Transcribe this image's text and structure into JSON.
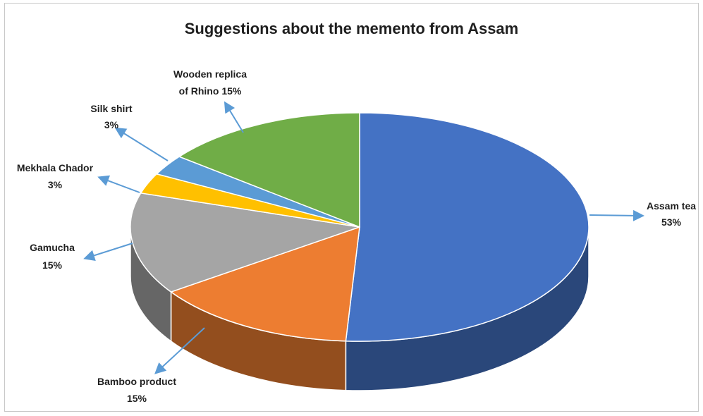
{
  "chart_data": {
    "type": "pie",
    "title": "Suggestions about the memento from Assam",
    "slices": [
      {
        "label": "Assam tea",
        "percent_label": "53%",
        "value": 53,
        "color": "#4472C4"
      },
      {
        "label": "Bamboo product",
        "percent_label": "15%",
        "value": 15,
        "color": "#ED7D31"
      },
      {
        "label": "Gamucha",
        "percent_label": "15%",
        "value": 15,
        "color": "#A5A5A5"
      },
      {
        "label": "Mekhala Chador",
        "percent_label": "3%",
        "value": 3,
        "color": "#FFC000"
      },
      {
        "label": "Silk shirt",
        "percent_label": "3%",
        "value": 3,
        "color": "#5B9BD5"
      },
      {
        "label": "Wooden replica of Rhino",
        "percent_label": "15%",
        "value": 15,
        "color": "#70AD47"
      }
    ],
    "legend": "none",
    "style": "3d"
  }
}
